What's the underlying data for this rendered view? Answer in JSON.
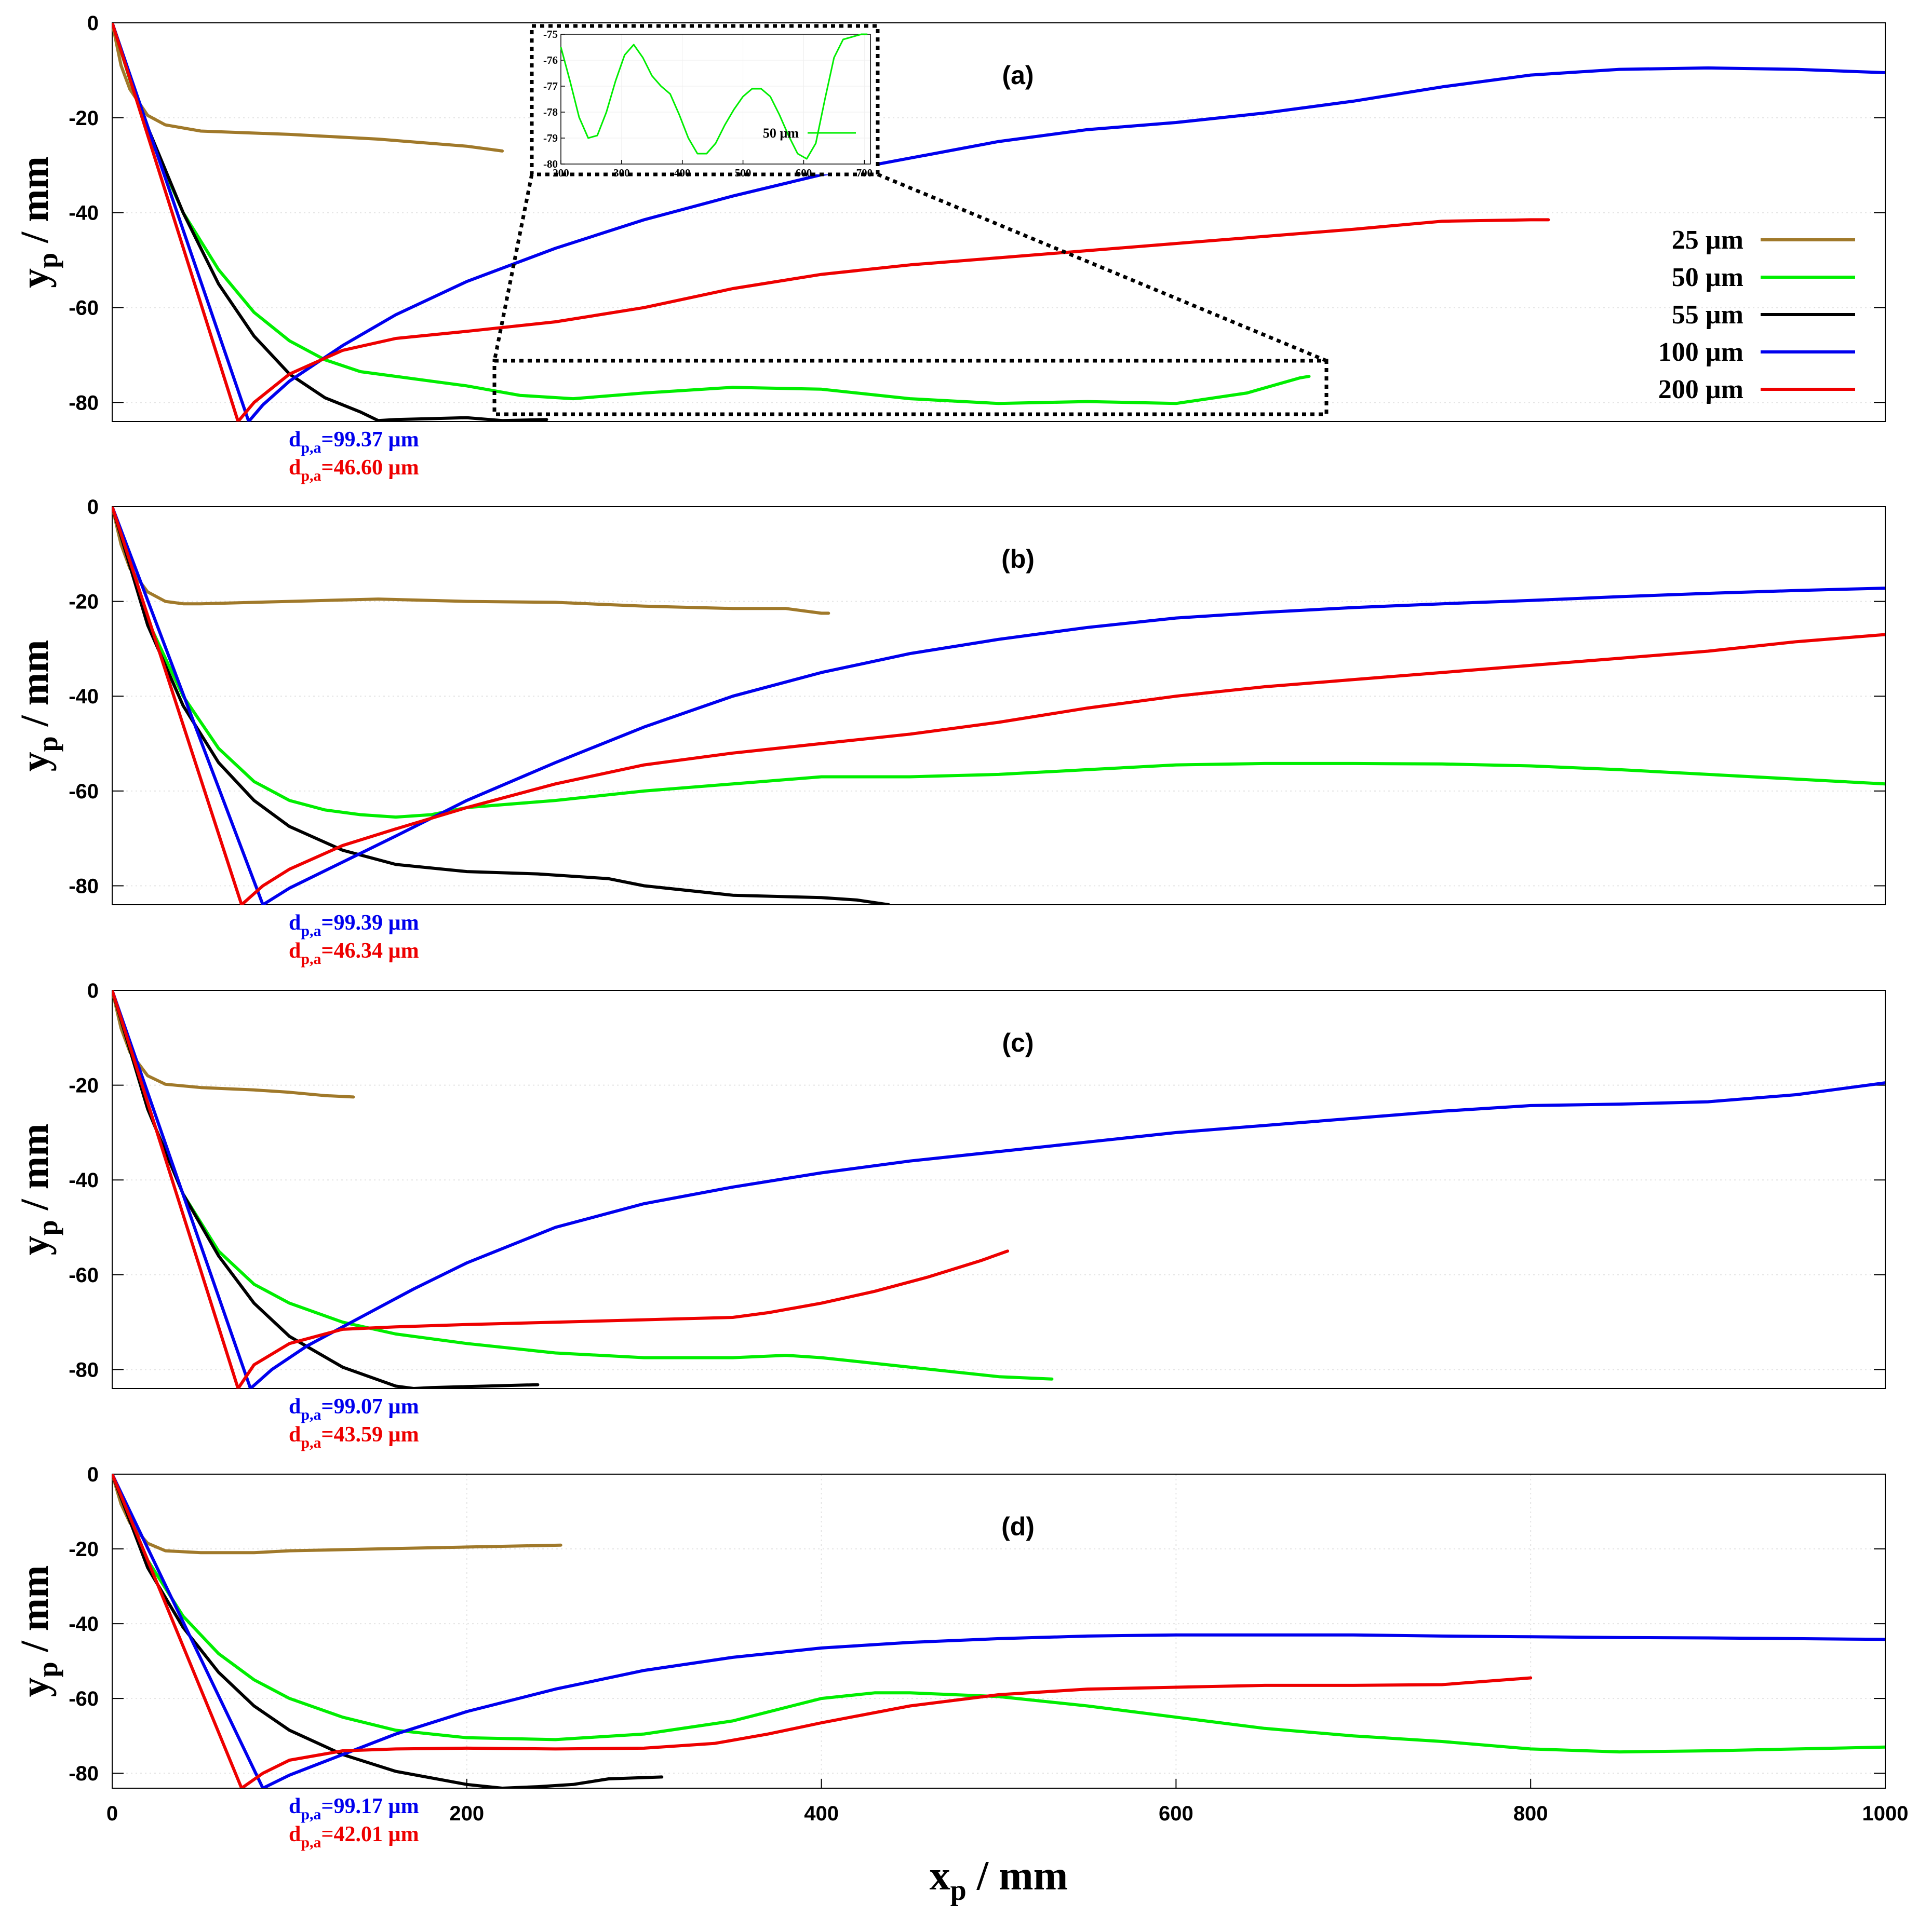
{
  "colors": {
    "25 µm": "#a0792a",
    "50 µm": "#00ee00",
    "55 µm": "#000000",
    "100 µm": "#0000ee",
    "200 µm": "#ee0000"
  },
  "chart_data": [
    {
      "type": "line",
      "title": "(a)",
      "ylabel": "yp / mm",
      "xlim": [
        0,
        1000
      ],
      "ylim": [
        -84,
        0
      ],
      "yticks": [
        0,
        -20,
        -40,
        -60,
        -80
      ],
      "legend": {
        "position": "right",
        "entries": [
          "25 µm",
          "50 µm",
          "55 µm",
          "100 µm",
          "200 µm"
        ]
      },
      "series": [
        {
          "name": "25 µm",
          "x": [
            0,
            5,
            10,
            20,
            30,
            50,
            100,
            150,
            200,
            220
          ],
          "y": [
            0,
            -9,
            -14,
            -19.5,
            -21.5,
            -22.8,
            -23.5,
            -24.5,
            -26,
            -27
          ]
        },
        {
          "name": "50 µm",
          "x": [
            0,
            10,
            20,
            40,
            60,
            80,
            100,
            120,
            140,
            160,
            180,
            200,
            230,
            260,
            300,
            350,
            400,
            450,
            500,
            550,
            600,
            640,
            670,
            675
          ],
          "y": [
            0,
            -12,
            -23,
            -40,
            -52,
            -61,
            -67,
            -71,
            -73.5,
            -74.5,
            -75.5,
            -76.5,
            -78.5,
            -79.2,
            -78,
            -76.8,
            -77.2,
            -79.2,
            -80.2,
            -79.8,
            -80.2,
            -78,
            -74.8,
            -74.5
          ]
        },
        {
          "name": "55 µm",
          "x": [
            0,
            20,
            40,
            60,
            80,
            100,
            120,
            140,
            150,
            160,
            180,
            200,
            220,
            245
          ],
          "y": [
            0,
            -22,
            -40,
            -55,
            -66,
            -74,
            -79,
            -82,
            -83.8,
            -83.6,
            -83.4,
            -83.2,
            -83.8,
            -83.6
          ]
        },
        {
          "name": "100 µm",
          "x": [
            0,
            77,
            85,
            100,
            130,
            160,
            200,
            250,
            300,
            350,
            400,
            450,
            500,
            550,
            600,
            650,
            700,
            750,
            800,
            850,
            900,
            950,
            1000
          ],
          "y": [
            0,
            -84,
            -80.5,
            -75.5,
            -68,
            -61.5,
            -54.5,
            -47.5,
            -41.5,
            -36.5,
            -32,
            -28.5,
            -25,
            -22.5,
            -21,
            -19,
            -16.5,
            -13.5,
            -11,
            -9.8,
            -9.5,
            -9.8,
            -10.5
          ]
        },
        {
          "name": "200 µm",
          "x": [
            0,
            71,
            80,
            100,
            130,
            160,
            200,
            250,
            300,
            350,
            400,
            450,
            500,
            550,
            600,
            650,
            700,
            750,
            800,
            810
          ],
          "y": [
            0,
            -84,
            -80,
            -74,
            -69,
            -66.5,
            -65,
            -63,
            -60,
            -56,
            -53,
            -51,
            -49.5,
            -48,
            -46.5,
            -45,
            -43.5,
            -41.8,
            -41.5,
            -41.5
          ]
        }
      ],
      "annotations": [
        {
          "sub": "p,a",
          "value": "=99.37 µm",
          "series": "100 µm"
        },
        {
          "sub": "p,a",
          "value": "=46.60 µm",
          "series": "200 µm"
        }
      ],
      "inset": {
        "series": "50 µm",
        "legend": "50 µm",
        "xlim": [
          200,
          710
        ],
        "ylim": [
          -80,
          -75
        ],
        "xticks": [
          200,
          300,
          400,
          500,
          600,
          700
        ],
        "yticks": [
          -75,
          -76,
          -77,
          -78,
          -79,
          -80
        ],
        "x": [
          200,
          215,
          230,
          245,
          260,
          275,
          290,
          305,
          320,
          335,
          350,
          365,
          380,
          395,
          410,
          425,
          440,
          455,
          470,
          485,
          500,
          515,
          530,
          545,
          560,
          575,
          590,
          605,
          620,
          635,
          650,
          665,
          680,
          695,
          705
        ],
        "y": [
          -75.5,
          -76.8,
          -78.2,
          -79,
          -78.9,
          -78,
          -76.8,
          -75.8,
          -75.4,
          -75.9,
          -76.6,
          -77,
          -77.3,
          -78.1,
          -79,
          -79.6,
          -79.6,
          -79.2,
          -78.5,
          -77.9,
          -77.4,
          -77.1,
          -77.1,
          -77.4,
          -78.1,
          -78.9,
          -79.6,
          -79.8,
          -79.2,
          -77.5,
          -75.9,
          -75.2,
          -75.1,
          -75,
          -75
        ]
      }
    },
    {
      "type": "line",
      "title": "(b)",
      "ylabel": "yp / mm",
      "xlim": [
        0,
        1000
      ],
      "ylim": [
        -84,
        0
      ],
      "yticks": [
        0,
        -20,
        -40,
        -60,
        -80
      ],
      "series": [
        {
          "name": "25 µm",
          "x": [
            0,
            5,
            10,
            20,
            30,
            40,
            50,
            100,
            150,
            200,
            250,
            300,
            350,
            380,
            400,
            404
          ],
          "y": [
            0,
            -8,
            -13,
            -18,
            -20,
            -20.5,
            -20.5,
            -20,
            -19.5,
            -20,
            -20.2,
            -21,
            -21.5,
            -21.5,
            -22.5,
            -22.5
          ]
        },
        {
          "name": "50 µm",
          "x": [
            0,
            20,
            40,
            60,
            80,
            100,
            120,
            140,
            160,
            180,
            200,
            250,
            300,
            350,
            400,
            450,
            500,
            550,
            600,
            650,
            700,
            750,
            800,
            850,
            900,
            950,
            1000
          ],
          "y": [
            0,
            -24,
            -40,
            -51,
            -58,
            -62,
            -64,
            -65,
            -65.5,
            -65,
            -63.5,
            -62,
            -60,
            -58.5,
            -57,
            -57,
            -56.5,
            -55.5,
            -54.5,
            -54.2,
            -54.2,
            -54.3,
            -54.7,
            -55.5,
            -56.5,
            -57.5,
            -58.5
          ]
        },
        {
          "name": "55 µm",
          "x": [
            0,
            20,
            40,
            60,
            80,
            100,
            130,
            160,
            200,
            240,
            280,
            300,
            350,
            400,
            420,
            438
          ],
          "y": [
            0,
            -25,
            -42,
            -54,
            -62,
            -67.5,
            -72.5,
            -75.5,
            -77,
            -77.5,
            -78.5,
            -80,
            -82,
            -82.5,
            -83,
            -84
          ]
        },
        {
          "name": "100 µm",
          "x": [
            0,
            85,
            100,
            130,
            160,
            200,
            250,
            300,
            350,
            400,
            450,
            500,
            550,
            600,
            650,
            700,
            750,
            800,
            850,
            900,
            950,
            1000
          ],
          "y": [
            0,
            -84,
            -80.5,
            -75,
            -69.5,
            -62,
            -54,
            -46.5,
            -40,
            -35,
            -31,
            -28,
            -25.5,
            -23.5,
            -22.3,
            -21.3,
            -20.5,
            -19.8,
            -19,
            -18.3,
            -17.7,
            -17.2
          ]
        },
        {
          "name": "200 µm",
          "x": [
            0,
            73,
            85,
            100,
            130,
            160,
            200,
            250,
            300,
            350,
            400,
            450,
            500,
            550,
            600,
            650,
            700,
            750,
            800,
            850,
            900,
            950,
            1000
          ],
          "y": [
            0,
            -84,
            -80,
            -76.5,
            -71.5,
            -68,
            -63.5,
            -58.5,
            -54.5,
            -52,
            -50,
            -48,
            -45.5,
            -42.5,
            -40,
            -38,
            -36.5,
            -35,
            -33.5,
            -32,
            -30.5,
            -28.5,
            -27
          ]
        }
      ],
      "annotations": [
        {
          "sub": "p,a",
          "value": "=99.39 µm",
          "series": "100 µm"
        },
        {
          "sub": "p,a",
          "value": "=46.34 µm",
          "series": "200 µm"
        }
      ]
    },
    {
      "type": "line",
      "title": "(c)",
      "ylabel": "yp / mm",
      "xlim": [
        0,
        1000
      ],
      "ylim": [
        -84,
        0
      ],
      "yticks": [
        0,
        -20,
        -40,
        -60,
        -80
      ],
      "series": [
        {
          "name": "25 µm",
          "x": [
            0,
            5,
            10,
            20,
            30,
            50,
            80,
            100,
            120,
            136
          ],
          "y": [
            0,
            -8,
            -13,
            -18,
            -19.8,
            -20.5,
            -21,
            -21.5,
            -22.2,
            -22.5
          ]
        },
        {
          "name": "50 µm",
          "x": [
            0,
            20,
            40,
            60,
            80,
            100,
            130,
            160,
            200,
            250,
            300,
            350,
            380,
            400,
            450,
            500,
            530
          ],
          "y": [
            0,
            -25,
            -43,
            -55,
            -62,
            -66,
            -70,
            -72.5,
            -74.5,
            -76.5,
            -77.5,
            -77.5,
            -77,
            -77.5,
            -79.5,
            -81.5,
            -82
          ]
        },
        {
          "name": "55 µm",
          "x": [
            0,
            20,
            40,
            60,
            80,
            100,
            130,
            160,
            170,
            180,
            200,
            240
          ],
          "y": [
            0,
            -25,
            -43,
            -56,
            -66,
            -73,
            -79.5,
            -83.5,
            -84,
            -83.8,
            -83.6,
            -83.2
          ]
        },
        {
          "name": "100 µm",
          "x": [
            0,
            78,
            90,
            110,
            140,
            170,
            200,
            250,
            300,
            350,
            400,
            450,
            500,
            550,
            600,
            650,
            700,
            750,
            800,
            850,
            900,
            950,
            1000
          ],
          "y": [
            0,
            -84,
            -80,
            -75,
            -69,
            -63,
            -57.5,
            -50,
            -45,
            -41.5,
            -38.5,
            -36,
            -34,
            -32,
            -30,
            -28.5,
            -27,
            -25.5,
            -24.3,
            -24,
            -23.5,
            -22,
            -19.5
          ]
        },
        {
          "name": "200 µm",
          "x": [
            0,
            71,
            80,
            100,
            130,
            160,
            200,
            250,
            300,
            350,
            370,
            400,
            430,
            460,
            490,
            505
          ],
          "y": [
            0,
            -84,
            -79,
            -74.5,
            -71.5,
            -71,
            -70.5,
            -70,
            -69.5,
            -69,
            -68,
            -66,
            -63.5,
            -60.5,
            -57,
            -55
          ]
        }
      ],
      "annotations": [
        {
          "sub": "p,a",
          "value": "=99.07 µm",
          "series": "100 µm"
        },
        {
          "sub": "p,a",
          "value": "=43.59 µm",
          "series": "200 µm"
        }
      ]
    },
    {
      "type": "line",
      "title": "(d)",
      "ylabel": "yp / mm",
      "xlabel": "xp / mm",
      "xlim": [
        0,
        1000
      ],
      "ylim": [
        -84,
        0
      ],
      "xticks": [
        0,
        200,
        400,
        600,
        800,
        1000
      ],
      "yticks": [
        0,
        -20,
        -40,
        -60,
        -80
      ],
      "series": [
        {
          "name": "25 µm",
          "x": [
            0,
            5,
            10,
            20,
            30,
            50,
            80,
            100,
            150,
            200,
            253
          ],
          "y": [
            0,
            -8,
            -13,
            -18.5,
            -20.5,
            -21,
            -21,
            -20.5,
            -20,
            -19.5,
            -19
          ]
        },
        {
          "name": "50 µm",
          "x": [
            0,
            20,
            40,
            60,
            80,
            100,
            130,
            160,
            200,
            250,
            300,
            350,
            400,
            430,
            450,
            500,
            550,
            600,
            650,
            700,
            750,
            800,
            850,
            900,
            950,
            1000
          ],
          "y": [
            0,
            -23,
            -38,
            -48,
            -55,
            -60,
            -65,
            -68.5,
            -70.5,
            -71,
            -69.5,
            -66,
            -60,
            -58.5,
            -58.5,
            -59.5,
            -62,
            -65,
            -68,
            -70,
            -71.5,
            -73.5,
            -74.3,
            -74,
            -73.5,
            -73
          ]
        },
        {
          "name": "55 µm",
          "x": [
            0,
            20,
            40,
            60,
            80,
            100,
            130,
            160,
            200,
            220,
            240,
            260,
            280,
            310
          ],
          "y": [
            0,
            -25,
            -41,
            -53,
            -62,
            -68.5,
            -75,
            -79.5,
            -83,
            -84,
            -83.6,
            -83,
            -81.5,
            -81
          ]
        },
        {
          "name": "100 µm",
          "x": [
            0,
            85,
            100,
            130,
            160,
            200,
            250,
            300,
            350,
            400,
            450,
            500,
            550,
            600,
            650,
            700,
            750,
            800,
            850,
            900,
            950,
            1000
          ],
          "y": [
            0,
            -84,
            -80.5,
            -75,
            -69.5,
            -63.5,
            -57.5,
            -52.5,
            -49,
            -46.5,
            -45,
            -44,
            -43.3,
            -43,
            -43,
            -43,
            -43.3,
            -43.5,
            -43.7,
            -43.8,
            -44,
            -44.2
          ]
        },
        {
          "name": "200 µm",
          "x": [
            0,
            73,
            85,
            100,
            130,
            160,
            200,
            250,
            300,
            340,
            370,
            400,
            450,
            500,
            550,
            600,
            650,
            700,
            750,
            800
          ],
          "y": [
            0,
            -84,
            -80,
            -76.5,
            -74,
            -73.5,
            -73.3,
            -73.5,
            -73.3,
            -72,
            -69.5,
            -66.5,
            -62,
            -59,
            -57.5,
            -57,
            -56.5,
            -56.5,
            -56.3,
            -54.5
          ]
        }
      ],
      "annotations": [
        {
          "sub": "p,a",
          "value": "=99.17 µm",
          "series": "100 µm"
        },
        {
          "sub": "p,a",
          "value": "=42.01 µm",
          "series": "200 µm"
        }
      ]
    }
  ]
}
